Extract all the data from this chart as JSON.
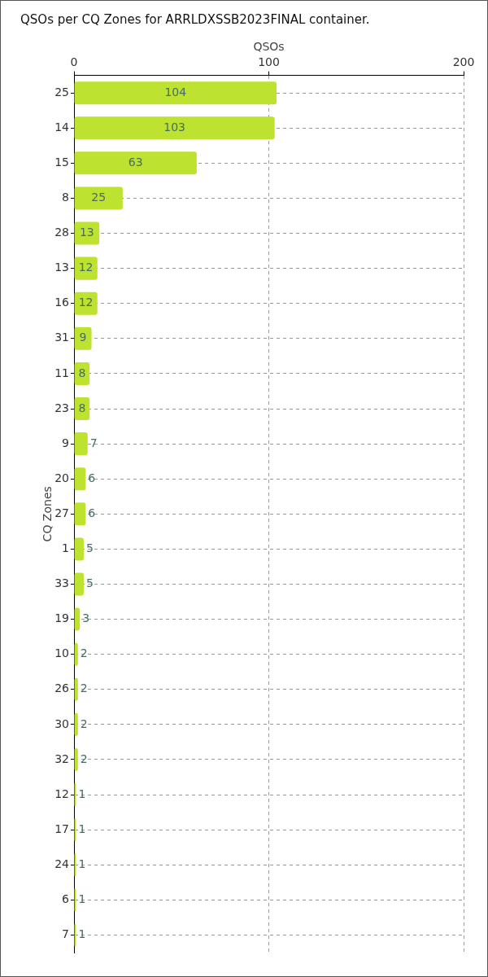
{
  "chart_data": {
    "type": "bar",
    "orientation": "horizontal",
    "title": "QSOs per CQ Zones for ARRLDXSSB2023FINAL container.",
    "xlabel": "QSOs",
    "ylabel": "CQ Zones",
    "categories": [
      "25",
      "14",
      "15",
      "8",
      "28",
      "13",
      "16",
      "31",
      "11",
      "23",
      "9",
      "20",
      "27",
      "1",
      "33",
      "19",
      "10",
      "26",
      "30",
      "32",
      "12",
      "17",
      "24",
      "6",
      "7"
    ],
    "values": [
      104,
      103,
      63,
      25,
      13,
      12,
      12,
      9,
      8,
      8,
      7,
      6,
      6,
      5,
      5,
      3,
      2,
      2,
      2,
      2,
      1,
      1,
      1,
      1,
      1
    ],
    "color": "#bde22f",
    "xlim": [
      0,
      200
    ],
    "xticks": [
      0,
      100,
      200
    ],
    "grid": true,
    "data_labels": true
  }
}
